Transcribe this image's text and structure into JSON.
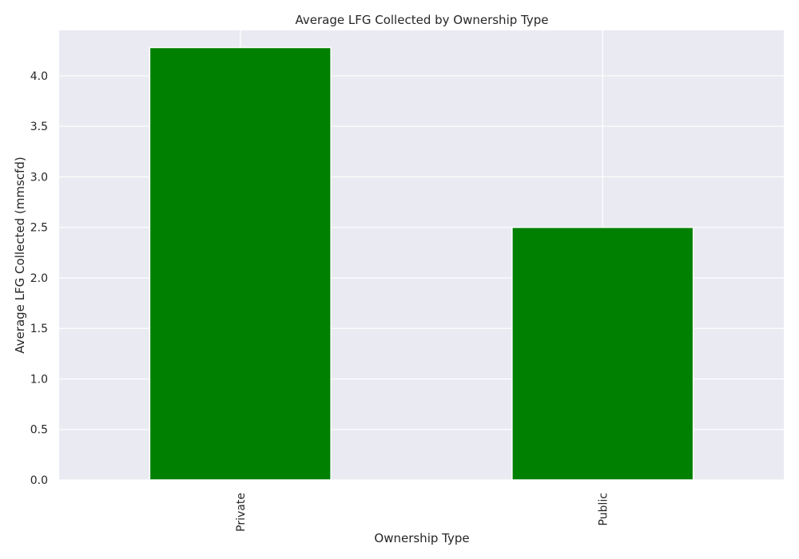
{
  "chart_data": {
    "type": "bar",
    "title": "Average LFG Collected by Ownership Type",
    "xlabel": "Ownership Type",
    "ylabel": "Average LFG Collected (mmscfd)",
    "categories": [
      "Private",
      "Public"
    ],
    "values": [
      4.28,
      2.5
    ],
    "ylim": [
      0,
      4.45
    ],
    "yticks": [
      0.0,
      0.5,
      1.0,
      1.5,
      2.0,
      2.5,
      3.0,
      3.5,
      4.0
    ],
    "ytick_labels": [
      "0.0",
      "0.5",
      "1.0",
      "1.5",
      "2.0",
      "2.5",
      "3.0",
      "3.5",
      "4.0"
    ],
    "grid": true,
    "legend": "none",
    "colors": {
      "bar": "#008000",
      "plot_background": "#eaeaf2",
      "grid": "#ffffff"
    }
  }
}
